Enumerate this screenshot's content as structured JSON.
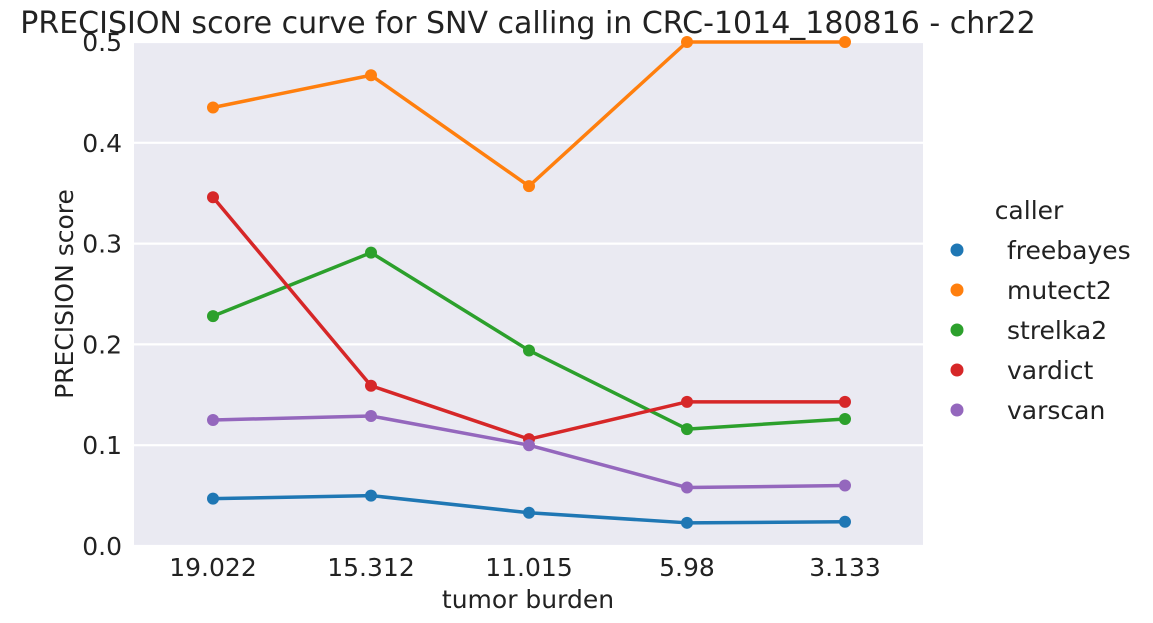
{
  "chart_data": {
    "type": "line",
    "title": "PRECISION score curve for SNV calling in CRC-1014_180816 - chr22",
    "xlabel": "tumor burden",
    "ylabel": "PRECISION score",
    "categories": [
      "19.022",
      "15.312",
      "11.015",
      "5.98",
      "3.133"
    ],
    "ylim": [
      0,
      0.5
    ],
    "yticks": [
      "0.0",
      "0.1",
      "0.2",
      "0.3",
      "0.4",
      "0.5"
    ],
    "grid": true,
    "legend": {
      "title": "caller",
      "placement": "right"
    },
    "series": [
      {
        "name": "freebayes",
        "color": "#1f77b4",
        "values": [
          0.047,
          0.05,
          0.033,
          0.023,
          0.024
        ]
      },
      {
        "name": "mutect2",
        "color": "#ff7f0e",
        "values": [
          0.435,
          0.467,
          0.357,
          0.5,
          0.5
        ]
      },
      {
        "name": "strelka2",
        "color": "#2ca02c",
        "values": [
          0.228,
          0.291,
          0.194,
          0.116,
          0.126
        ]
      },
      {
        "name": "vardict",
        "color": "#d62728",
        "values": [
          0.346,
          0.159,
          0.106,
          0.143,
          0.143
        ]
      },
      {
        "name": "varscan",
        "color": "#9467bd",
        "values": [
          0.125,
          0.129,
          0.1,
          0.058,
          0.06
        ]
      }
    ]
  }
}
